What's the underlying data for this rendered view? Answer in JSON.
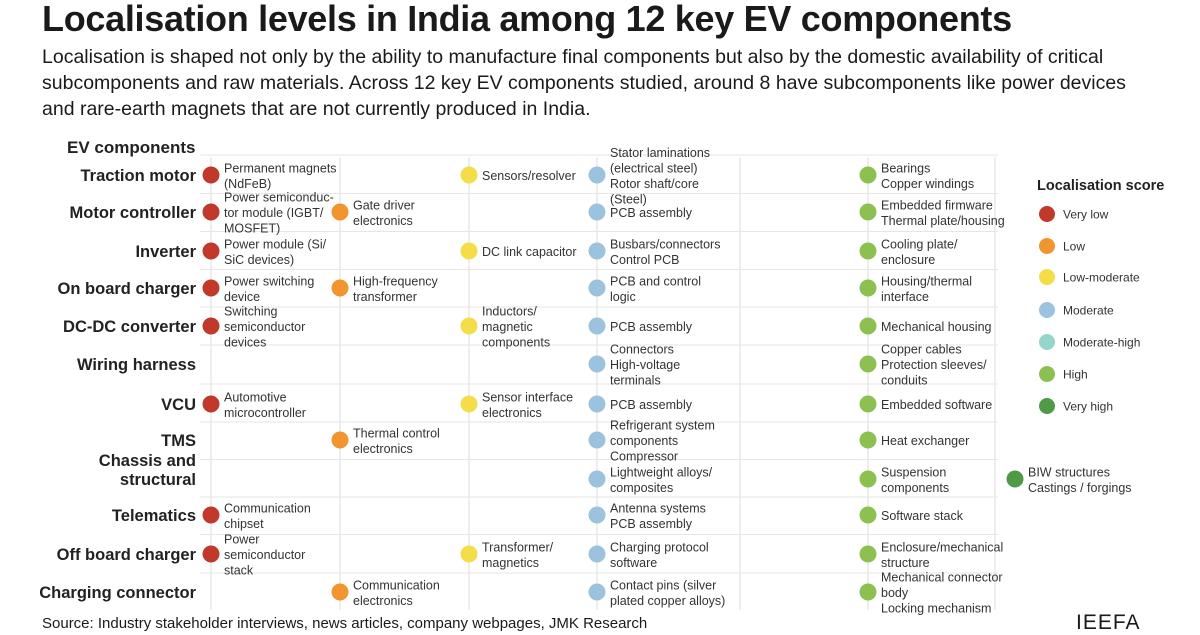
{
  "title": "Localisation levels in India among 12 key EV components",
  "subtitle": "Localisation is shaped not only by the ability to manufacture final components but also by the domestic availability of critical subcomponents and raw materials. Across 12 key EV components studied, around 8 have subcomponents like power devices and rare-earth magnets that are not currently produced in India.",
  "source": "Source: Industry stakeholder interviews, news articles, company webpages, JMK Research",
  "brand": "IEEFA",
  "chart_data": {
    "type": "table",
    "row_header": "EV components",
    "legend_title": "Localisation score",
    "levels": [
      {
        "key": "vl",
        "name": "Very low",
        "color": "#c0392b"
      },
      {
        "key": "l",
        "name": "Low",
        "color": "#f0952f"
      },
      {
        "key": "lm",
        "name": "Low-moderate",
        "color": "#f5dd4a"
      },
      {
        "key": "m",
        "name": "Moderate",
        "color": "#9cc3de"
      },
      {
        "key": "mh",
        "name": "Moderate-high",
        "color": "#94d6c9"
      },
      {
        "key": "h",
        "name": "High",
        "color": "#8cc152"
      },
      {
        "key": "vh",
        "name": "Very high",
        "color": "#4e9a47"
      }
    ],
    "rows": [
      {
        "name": [
          "Traction motor"
        ],
        "items": [
          {
            "level": "vl",
            "lines": [
              "Permanent magnets",
              "(NdFeB)"
            ]
          },
          {
            "level": "lm",
            "lines": [
              "Sensors/resolver"
            ]
          },
          {
            "level": "m",
            "lines": [
              "Stator laminations",
              "(electrical steel)",
              "Rotor shaft/core",
              "(Steel)"
            ]
          },
          {
            "level": "h",
            "lines": [
              "Bearings",
              "Copper windings"
            ]
          }
        ]
      },
      {
        "name": [
          "Motor controller"
        ],
        "items": [
          {
            "level": "vl",
            "lines": [
              "Power semiconduc-",
              "tor module (IGBT/",
              "MOSFET)"
            ]
          },
          {
            "level": "l",
            "lines": [
              "Gate driver",
              "electronics"
            ]
          },
          {
            "level": "m",
            "lines": [
              "PCB assembly"
            ]
          },
          {
            "level": "h",
            "lines": [
              "Embedded firmware",
              "Thermal plate/housing"
            ]
          }
        ]
      },
      {
        "name": [
          "Inverter"
        ],
        "items": [
          {
            "level": "vl",
            "lines": [
              "Power module (Si/",
              "SiC devices)"
            ]
          },
          {
            "level": "lm",
            "lines": [
              "DC link capacitor"
            ]
          },
          {
            "level": "m",
            "lines": [
              "Busbars/connectors",
              "Control PCB"
            ]
          },
          {
            "level": "h",
            "lines": [
              "Cooling plate/",
              "enclosure"
            ]
          }
        ]
      },
      {
        "name": [
          "On board charger"
        ],
        "items": [
          {
            "level": "vl",
            "lines": [
              "Power switching",
              "device"
            ]
          },
          {
            "level": "l",
            "lines": [
              "High-frequency",
              "transformer"
            ]
          },
          {
            "level": "m",
            "lines": [
              "PCB and control",
              "logic"
            ]
          },
          {
            "level": "h",
            "lines": [
              "Housing/thermal",
              "interface"
            ]
          }
        ]
      },
      {
        "name": [
          "DC-DC converter"
        ],
        "items": [
          {
            "level": "vl",
            "lines": [
              "Switching",
              "semiconductor",
              "devices"
            ]
          },
          {
            "level": "lm",
            "lines": [
              "Inductors/",
              "magnetic",
              "components"
            ]
          },
          {
            "level": "m",
            "lines": [
              "PCB assembly"
            ]
          },
          {
            "level": "h",
            "lines": [
              "Mechanical housing"
            ]
          }
        ]
      },
      {
        "name": [
          "Wiring harness"
        ],
        "items": [
          {
            "level": "m",
            "lines": [
              "Connectors",
              "High-voltage",
              "terminals"
            ]
          },
          {
            "level": "h",
            "lines": [
              "Copper cables",
              "Protection sleeves/",
              "conduits"
            ]
          }
        ]
      },
      {
        "name": [
          "VCU"
        ],
        "items": [
          {
            "level": "vl",
            "lines": [
              "Automotive",
              "microcontroller"
            ]
          },
          {
            "level": "lm",
            "lines": [
              "Sensor interface",
              "electronics"
            ]
          },
          {
            "level": "m",
            "lines": [
              "PCB assembly"
            ]
          },
          {
            "level": "h",
            "lines": [
              "Embedded software"
            ]
          }
        ]
      },
      {
        "name": [
          "TMS"
        ],
        "items": [
          {
            "level": "l",
            "lines": [
              "Thermal control",
              "electronics"
            ]
          },
          {
            "level": "m",
            "lines": [
              "Refrigerant system",
              "components",
              "Compressor"
            ]
          },
          {
            "level": "h",
            "lines": [
              "Heat exchanger"
            ]
          }
        ]
      },
      {
        "name": [
          "Chassis and",
          "structural"
        ],
        "items": [
          {
            "level": "m",
            "lines": [
              "Lightweight alloys/",
              "composites"
            ]
          },
          {
            "level": "h",
            "lines": [
              "Suspension",
              "components"
            ]
          },
          {
            "level": "vh",
            "lines": [
              "BIW structures",
              "Castings / forgings"
            ]
          }
        ]
      },
      {
        "name": [
          "Telematics"
        ],
        "items": [
          {
            "level": "vl",
            "lines": [
              "Communication",
              "chipset"
            ]
          },
          {
            "level": "m",
            "lines": [
              "Antenna systems",
              "PCB assembly"
            ]
          },
          {
            "level": "h",
            "lines": [
              "Software stack"
            ]
          }
        ]
      },
      {
        "name": [
          "Off board charger"
        ],
        "items": [
          {
            "level": "vl",
            "lines": [
              "Power",
              "semiconductor",
              "stack"
            ]
          },
          {
            "level": "lm",
            "lines": [
              "Transformer/",
              "magnetics"
            ]
          },
          {
            "level": "m",
            "lines": [
              "Charging protocol",
              "software"
            ]
          },
          {
            "level": "h",
            "lines": [
              "Enclosure/mechanical",
              "structure"
            ]
          }
        ]
      },
      {
        "name": [
          "Charging connector"
        ],
        "items": [
          {
            "level": "l",
            "lines": [
              "Communication",
              "electronics"
            ]
          },
          {
            "level": "m",
            "lines": [
              "Contact pins (silver",
              "plated copper alloys)"
            ]
          },
          {
            "level": "h",
            "lines": [
              "Mechanical connector",
              "body",
              "Locking mechanism"
            ]
          }
        ]
      }
    ]
  }
}
